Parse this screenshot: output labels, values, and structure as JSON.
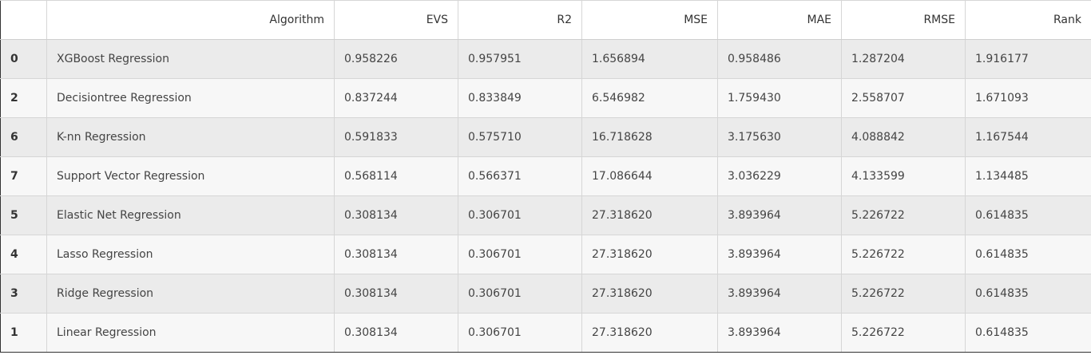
{
  "table": {
    "columns": [
      "",
      "Algorithm",
      "EVS",
      "R2",
      "MSE",
      "MAE",
      "RMSE",
      "Rank"
    ],
    "rows": [
      [
        "0",
        "XGBoost Regression",
        "0.958226",
        "0.957951",
        "1.656894",
        "0.958486",
        "1.287204",
        "1.916177"
      ],
      [
        "2",
        "Decisiontree Regression",
        "0.837244",
        "0.833849",
        "6.546982",
        "1.759430",
        "2.558707",
        "1.671093"
      ],
      [
        "6",
        "K-nn Regression",
        "0.591833",
        "0.575710",
        "16.718628",
        "3.175630",
        "4.088842",
        "1.167544"
      ],
      [
        "7",
        "Support Vector Regression",
        "0.568114",
        "0.566371",
        "17.086644",
        "3.036229",
        "4.133599",
        "1.134485"
      ],
      [
        "5",
        "Elastic Net Regression",
        "0.308134",
        "0.306701",
        "27.318620",
        "3.893964",
        "5.226722",
        "0.614835"
      ],
      [
        "4",
        "Lasso Regression",
        "0.308134",
        "0.306701",
        "27.318620",
        "3.893964",
        "5.226722",
        "0.614835"
      ],
      [
        "3",
        "Ridge Regression",
        "0.308134",
        "0.306701",
        "27.318620",
        "3.893964",
        "5.226722",
        "0.614835"
      ],
      [
        "1",
        "Linear Regression",
        "0.308134",
        "0.306701",
        "27.318620",
        "3.893964",
        "5.226722",
        "0.614835"
      ]
    ]
  },
  "colors": {
    "row_odd": "#ebebeb",
    "row_even": "#f7f7f7",
    "header_bg": "#ffffff",
    "border": "#d6d6d6",
    "text": "#333333"
  }
}
